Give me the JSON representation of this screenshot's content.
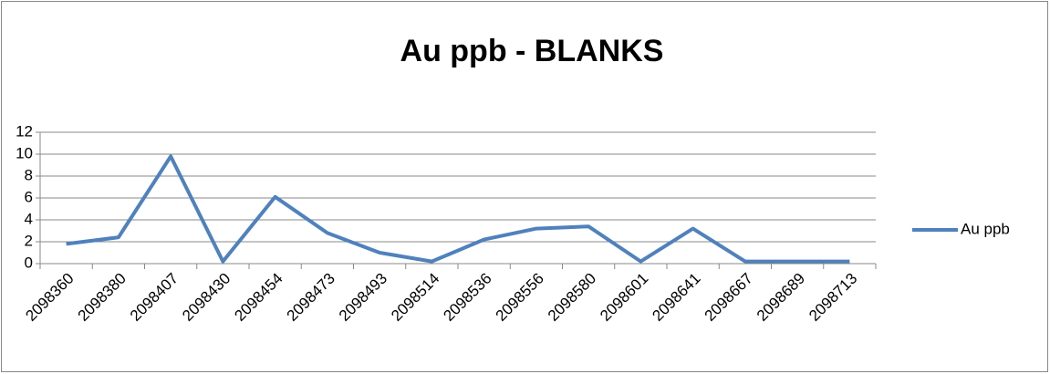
{
  "chart_data": {
    "type": "line",
    "title": "Au ppb - BLANKS",
    "categories": [
      "2098360",
      "2098380",
      "2098407",
      "2098430",
      "2098454",
      "2098473",
      "2098493",
      "2098514",
      "2098536",
      "2098556",
      "2098580",
      "2098601",
      "2098641",
      "2098667",
      "2098689",
      "2098713"
    ],
    "series": [
      {
        "name": "Au ppb",
        "color": "#4f81bd",
        "values": [
          1.8,
          2.4,
          9.8,
          0.2,
          6.1,
          2.8,
          1.0,
          0.2,
          2.2,
          3.2,
          3.4,
          0.2,
          3.2,
          0.2,
          0.2,
          0.2
        ]
      }
    ],
    "ylim": [
      0,
      12
    ],
    "yticks": [
      0,
      2,
      4,
      6,
      8,
      10,
      12
    ],
    "grid": true,
    "legend": "right"
  }
}
